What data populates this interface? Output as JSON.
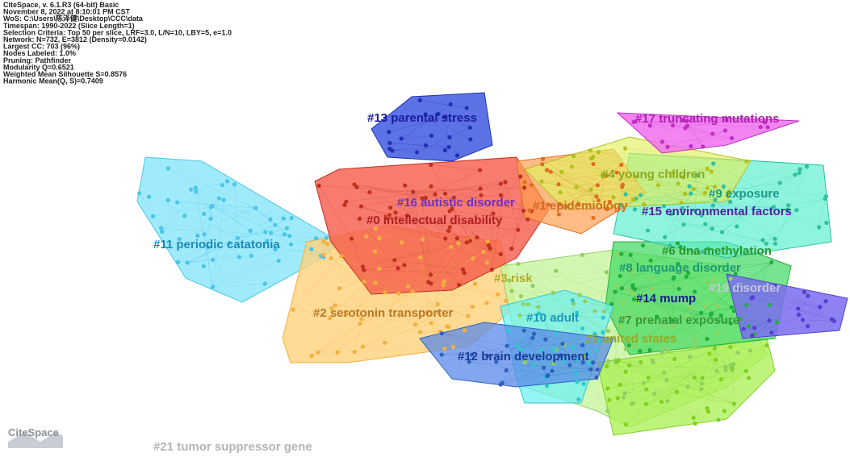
{
  "info": [
    "CiteSpace, v. 6.1.R3 (64-bit) Basic",
    "November 8, 2022 at 8:10:01 PM CST",
    "WoS: C:\\Users\\陈泽健\\Desktop\\CCC\\data",
    "Timespan: 1990-2022 (Slice Length=1)",
    "Selection Criteria: Top 50 per slice, LRF=3.0, L/N=10, LBY=5, e=1.0",
    "Network: N=732, E=3812 (Density=0.0142)",
    "Largest CC: 703 (96%)",
    "Nodes Labeled: 1.0%",
    "Pruning: Pathfinder",
    "Modularity Q=0.6521",
    "Weighted Mean Silhouette S=0.8576",
    "Harmonic Mean(Q, S)=0.7409"
  ],
  "clusters": [
    "#13 parental stress",
    "#17 truncating mutations",
    "#4 young children",
    "#9 exposure",
    "#16 autistic disorder",
    "#1 epidemiology",
    "#15 environmental factors",
    "#0 intellectual disability",
    "#11 periodic catatonia",
    "#6 dna methylation",
    "#8 language disorder",
    "#3 risk",
    "#19 disorder",
    "#14 mump",
    "#2 serotonin transporter",
    "#10 adult",
    "#7 prenatal exposure",
    "#5 united states",
    "#12 brain development",
    "#21 tumor suppressor gene"
  ],
  "logo": "CiteSpace"
}
